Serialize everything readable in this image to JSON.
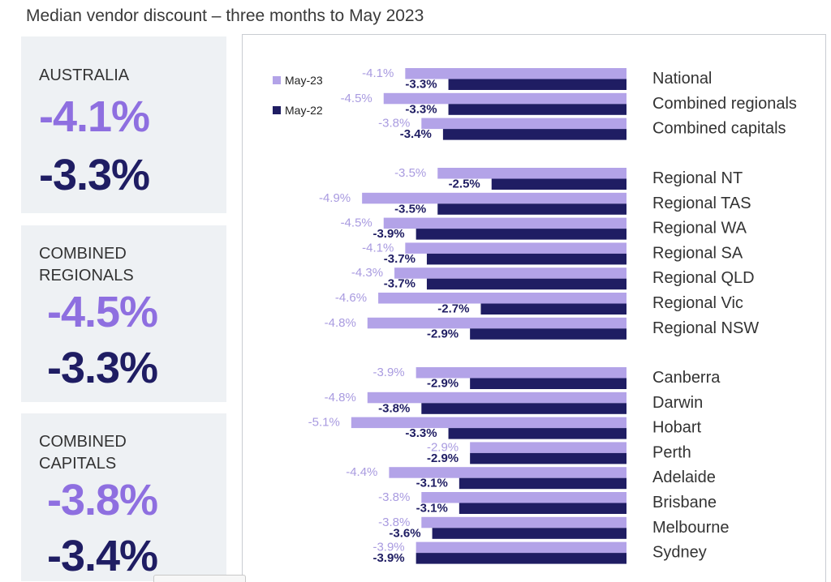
{
  "title": "Median vendor discount – three months to May 2023",
  "cards": [
    {
      "label": "AUSTRALIA",
      "may23": "-4.1%",
      "may22": "-3.3%"
    },
    {
      "label": "COMBINED\nREGIONALS",
      "may23": "-4.5%",
      "may22": "-3.3%"
    },
    {
      "label": "COMBINED\nCAPITALS",
      "may23": "-3.8%",
      "may22": "-3.4%"
    }
  ],
  "colors": {
    "may23": "#b3a3e8",
    "may22": "#1f1d63",
    "may23_label": "#a99be0",
    "may22_label": "#1f1d63"
  },
  "chart_data": {
    "type": "bar",
    "orientation": "horizontal",
    "legend_position": "top-left",
    "categories": [
      "National",
      "Combined regionals",
      "Combined capitals",
      "Regional NT",
      "Regional TAS",
      "Regional WA",
      "Regional SA",
      "Regional QLD",
      "Regional Vic",
      "Regional NSW",
      "Canberra",
      "Darwin",
      "Hobart",
      "Perth",
      "Adelaide",
      "Brisbane",
      "Melbourne",
      "Sydney"
    ],
    "groups": [
      [
        0,
        1,
        2
      ],
      [
        3,
        4,
        5,
        6,
        7,
        8,
        9
      ],
      [
        10,
        11,
        12,
        13,
        14,
        15,
        16,
        17
      ]
    ],
    "series": [
      {
        "name": "May-23",
        "values": [
          -4.1,
          -4.5,
          -3.8,
          -3.5,
          -4.9,
          -4.5,
          -4.1,
          -4.3,
          -4.6,
          -4.8,
          -3.9,
          -4.8,
          -5.1,
          -2.9,
          -4.4,
          -3.8,
          -3.8,
          -3.9
        ]
      },
      {
        "name": "May-22",
        "values": [
          -3.3,
          -3.3,
          -3.4,
          -2.5,
          -3.5,
          -3.9,
          -3.7,
          -3.7,
          -2.7,
          -2.9,
          -2.9,
          -3.8,
          -3.3,
          -2.9,
          -3.1,
          -3.1,
          -3.6,
          -3.9
        ]
      }
    ],
    "value_labels": {
      "May-23": [
        "-4.1%",
        "-4.5%",
        "-3.8%",
        "-3.5%",
        "-4.9%",
        "-4.5%",
        "-4.1%",
        "-4.3%",
        "-4.6%",
        "-4.8%",
        "-3.9%",
        "-4.8%",
        "-5.1%",
        "-2.9%",
        "-4.4%",
        "-3.8%",
        "-3.8%",
        "-3.9%"
      ],
      "May-22": [
        "-3.3%",
        "-3.3%",
        "-3.4%",
        "-2.5%",
        "-3.5%",
        "-3.9%",
        "-3.7%",
        "-3.7%",
        "-2.7%",
        "-2.9%",
        "-2.9%",
        "-3.8%",
        "-3.3%",
        "-2.9%",
        "-3.1%",
        "-3.1%",
        "-3.6%",
        "-3.9%"
      ]
    }
  }
}
